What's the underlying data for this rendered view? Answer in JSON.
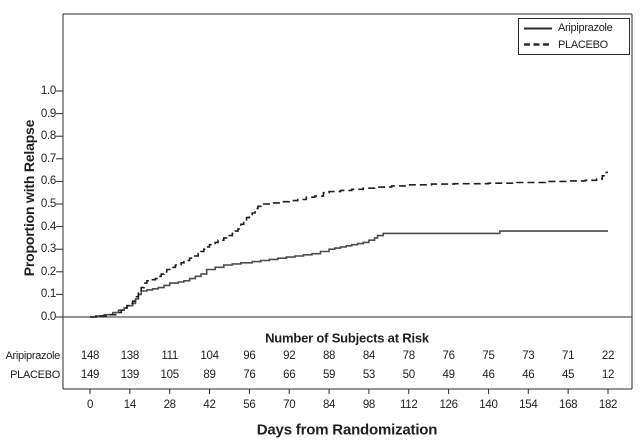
{
  "colors": {
    "background": "#ffffff",
    "axis": "#2b2b2b",
    "text": "#1f1f1f",
    "aripiprazole_line": "#4d4d4d",
    "placebo_line": "#1f1f1f"
  },
  "figure": {
    "legend": {
      "items": [
        {
          "label": "Aripiprazole",
          "line_style": "solid"
        },
        {
          "label": "PLACEBO",
          "line_style": "dashed"
        }
      ]
    }
  },
  "risk_table": {
    "title": "Number of Subjects at Risk",
    "rows": [
      {
        "label": "Aripiprazole",
        "values": [
          "148",
          "138",
          "111",
          "104",
          "96",
          "92",
          "88",
          "84",
          "78",
          "76",
          "75",
          "73",
          "71",
          "22"
        ]
      },
      {
        "label": "PLACEBO",
        "values": [
          "149",
          "139",
          "105",
          "89",
          "76",
          "66",
          "59",
          "53",
          "50",
          "49",
          "46",
          "46",
          "45",
          "12"
        ]
      }
    ]
  },
  "chart_data": {
    "type": "line",
    "subtype": "kaplan-meier-step",
    "title": "",
    "xlabel": "Days from Randomization",
    "ylabel": "Proportion with Relapse",
    "xlim": [
      0,
      182
    ],
    "ylim": [
      0.0,
      1.0
    ],
    "grid": false,
    "legend_position": "top-right",
    "x_ticks": [
      0,
      14,
      28,
      42,
      56,
      70,
      84,
      98,
      112,
      126,
      140,
      154,
      168,
      182
    ],
    "y_ticks": [
      "0.0",
      "0.1",
      "0.2",
      "0.3",
      "0.4",
      "0.5",
      "0.6",
      "0.7",
      "0.8",
      "0.9",
      "1.0"
    ],
    "series": [
      {
        "name": "Aripiprazole",
        "line": "solid",
        "color": "#4d4d4d",
        "points": [
          [
            0,
            0
          ],
          [
            2,
            0.005
          ],
          [
            5,
            0.01
          ],
          [
            8,
            0.02
          ],
          [
            10,
            0.03
          ],
          [
            12,
            0.04
          ],
          [
            13,
            0.05
          ],
          [
            15,
            0.06
          ],
          [
            16,
            0.08
          ],
          [
            17,
            0.1
          ],
          [
            18,
            0.115
          ],
          [
            20,
            0.12
          ],
          [
            22,
            0.125
          ],
          [
            24,
            0.13
          ],
          [
            26,
            0.14
          ],
          [
            28,
            0.15
          ],
          [
            31,
            0.155
          ],
          [
            33,
            0.16
          ],
          [
            35,
            0.17
          ],
          [
            37,
            0.18
          ],
          [
            39,
            0.19
          ],
          [
            41,
            0.21
          ],
          [
            44,
            0.22
          ],
          [
            47,
            0.23
          ],
          [
            50,
            0.235
          ],
          [
            53,
            0.24
          ],
          [
            57,
            0.245
          ],
          [
            60,
            0.25
          ],
          [
            63,
            0.255
          ],
          [
            66,
            0.26
          ],
          [
            69,
            0.265
          ],
          [
            72,
            0.27
          ],
          [
            75,
            0.275
          ],
          [
            78,
            0.28
          ],
          [
            81,
            0.29
          ],
          [
            84,
            0.3
          ],
          [
            86,
            0.305
          ],
          [
            88,
            0.31
          ],
          [
            90,
            0.315
          ],
          [
            92,
            0.32
          ],
          [
            94,
            0.325
          ],
          [
            96,
            0.33
          ],
          [
            98,
            0.34
          ],
          [
            100,
            0.35
          ],
          [
            101,
            0.36
          ],
          [
            103,
            0.37
          ],
          [
            144,
            0.38
          ],
          [
            182,
            0.38
          ]
        ]
      },
      {
        "name": "Placebo",
        "line": "dashed",
        "color": "#1f1f1f",
        "points": [
          [
            0,
            0
          ],
          [
            3,
            0.005
          ],
          [
            6,
            0.01
          ],
          [
            9,
            0.02
          ],
          [
            11,
            0.03
          ],
          [
            12,
            0.04
          ],
          [
            13,
            0.05
          ],
          [
            14,
            0.06
          ],
          [
            15,
            0.07
          ],
          [
            16,
            0.09
          ],
          [
            17,
            0.11
          ],
          [
            18,
            0.13
          ],
          [
            19,
            0.15
          ],
          [
            20,
            0.16
          ],
          [
            21,
            0.165
          ],
          [
            23,
            0.17
          ],
          [
            24,
            0.18
          ],
          [
            25,
            0.19
          ],
          [
            26,
            0.2
          ],
          [
            27,
            0.21
          ],
          [
            28,
            0.22
          ],
          [
            30,
            0.23
          ],
          [
            32,
            0.24
          ],
          [
            33,
            0.25
          ],
          [
            35,
            0.26
          ],
          [
            36,
            0.27
          ],
          [
            38,
            0.28
          ],
          [
            39,
            0.29
          ],
          [
            40,
            0.3
          ],
          [
            41,
            0.31
          ],
          [
            42,
            0.32
          ],
          [
            44,
            0.33
          ],
          [
            45,
            0.34
          ],
          [
            47,
            0.35
          ],
          [
            48,
            0.36
          ],
          [
            50,
            0.37
          ],
          [
            51,
            0.38
          ],
          [
            52,
            0.39
          ],
          [
            53,
            0.41
          ],
          [
            54,
            0.43
          ],
          [
            55,
            0.44
          ],
          [
            56,
            0.45
          ],
          [
            57,
            0.46
          ],
          [
            58,
            0.48
          ],
          [
            59,
            0.49
          ],
          [
            60,
            0.5
          ],
          [
            64,
            0.505
          ],
          [
            67,
            0.51
          ],
          [
            70,
            0.515
          ],
          [
            73,
            0.52
          ],
          [
            76,
            0.53
          ],
          [
            79,
            0.535
          ],
          [
            82,
            0.55
          ],
          [
            84,
            0.555
          ],
          [
            88,
            0.56
          ],
          [
            92,
            0.565
          ],
          [
            96,
            0.57
          ],
          [
            100,
            0.575
          ],
          [
            106,
            0.58
          ],
          [
            112,
            0.585
          ],
          [
            120,
            0.588
          ],
          [
            128,
            0.59
          ],
          [
            140,
            0.592
          ],
          [
            150,
            0.595
          ],
          [
            160,
            0.6
          ],
          [
            168,
            0.602
          ],
          [
            174,
            0.605
          ],
          [
            178,
            0.61
          ],
          [
            180,
            0.625
          ],
          [
            181,
            0.64
          ]
        ]
      }
    ],
    "number_at_risk_days": [
      0,
      14,
      28,
      42,
      56,
      70,
      84,
      98,
      112,
      126,
      140,
      154,
      168,
      182
    ]
  }
}
